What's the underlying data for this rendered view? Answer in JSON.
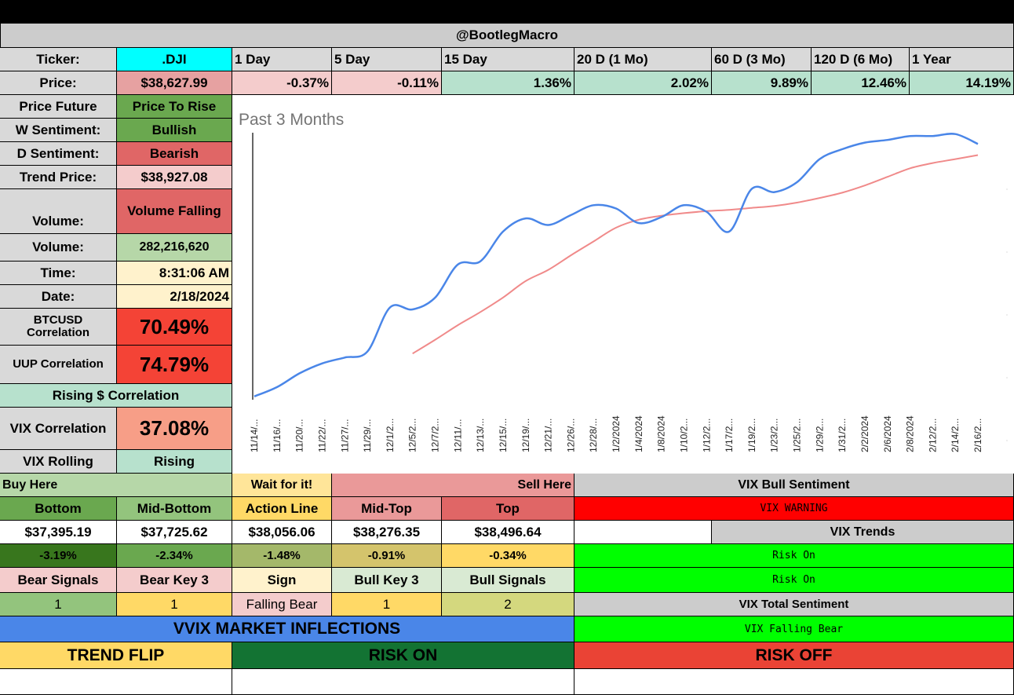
{
  "header": {
    "title": "@BootlegMacro"
  },
  "ticker": {
    "label": "Ticker:",
    "value": ".DJI"
  },
  "periods": [
    "1 Day",
    "5 Day",
    "15 Day",
    "20 D (1 Mo)",
    "60 D (3 Mo)",
    "120 D (6 Mo)",
    "1 Year"
  ],
  "price": {
    "label": "Price:",
    "value": "$38,627.99",
    "changes": [
      "-0.37%",
      "-0.11%",
      "1.36%",
      "2.02%",
      "9.89%",
      "12.46%",
      "14.19%"
    ]
  },
  "stats": {
    "price_future": {
      "label": "Price Future",
      "value": "Price To Rise"
    },
    "w_sentiment": {
      "label": "W Sentiment:",
      "value": "Bullish"
    },
    "d_sentiment": {
      "label": "D Sentiment:",
      "value": "Bearish"
    },
    "trend_price": {
      "label": "Trend Price:",
      "value": "$38,927.08"
    },
    "volume_trend": {
      "label": "Volume:",
      "value": "Volume Falling"
    },
    "volume": {
      "label": "Volume:",
      "value": "282,216,620"
    },
    "time": {
      "label": "Time:",
      "value": "8:31:06 AM"
    },
    "date": {
      "label": "Date:",
      "value": "2/18/2024"
    },
    "btcusd": {
      "label": "BTCUSD Correlation",
      "value": "70.49%"
    },
    "uup": {
      "label": "UUP Correlation",
      "value": "74.79%"
    },
    "rising": {
      "label": "Rising $ Correlation"
    },
    "vix_corr": {
      "label": "VIX Correlation",
      "value": "37.08%"
    },
    "vix_rolling": {
      "label": "VIX Rolling",
      "value": "Rising"
    }
  },
  "levels": {
    "buy_here": "Buy Here",
    "wait": "Wait for it!",
    "sell_here": "Sell Here",
    "headers": [
      "Bottom",
      "Mid-Bottom",
      "Action Line",
      "Mid-Top",
      "Top"
    ],
    "prices": [
      "$37,395.19",
      "$37,725.62",
      "$38,056.06",
      "$38,276.35",
      "$38,496.64"
    ],
    "pcts": [
      "-3.19%",
      "-2.34%",
      "-1.48%",
      "-0.91%",
      "-0.34%"
    ],
    "signal_headers": [
      "Bear Signals",
      "Bear Key 3",
      "Sign",
      "Bull Key 3",
      "Bull Signals"
    ],
    "signal_values": [
      "1",
      "1",
      "Falling Bear",
      "1",
      "2"
    ]
  },
  "vix": {
    "bull_sentiment": "VIX Bull Sentiment",
    "warning": "VIX WARNING",
    "trends": "VIX Trends",
    "risk_on_1": "Risk On",
    "risk_on_2": "Risk On",
    "total_sentiment": "VIX Total Sentiment",
    "falling_bear": "VIX Falling Bear"
  },
  "vvix": {
    "title": "VVIX MARKET INFLECTIONS",
    "trend_flip": "TREND FLIP",
    "risk_on": "RISK ON",
    "risk_off": "RISK OFF"
  },
  "colors": {
    "price_line": "#4a86e8",
    "trend_line": "#f08a8a"
  },
  "chart_data": {
    "type": "line",
    "title": "Past 3 Months",
    "x": [
      "11/14/...",
      "11/16/...",
      "11/20/...",
      "11/22/...",
      "11/27/...",
      "11/29/...",
      "12/1/2...",
      "12/5/2...",
      "12/7/2...",
      "12/11/...",
      "12/13/...",
      "12/15/...",
      "12/19/...",
      "12/21/...",
      "12/26/...",
      "12/28/...",
      "1/2/2024",
      "1/4/2024",
      "1/8/2024",
      "1/10/2...",
      "1/12/2...",
      "1/17/2...",
      "1/19/2...",
      "1/23/2...",
      "1/25/2...",
      "1/29/2...",
      "1/31/2...",
      "2/2/2024",
      "2/6/2024",
      "2/8/2024",
      "2/12/2...",
      "2/14/2...",
      "2/16/2..."
    ],
    "series": [
      {
        "values": [
          34800,
          34940,
          35150,
          35300,
          35390,
          35480,
          36150,
          36120,
          36300,
          36800,
          36850,
          37300,
          37500,
          37400,
          37550,
          37700,
          37650,
          37430,
          37520,
          37700,
          37600,
          37300,
          37950,
          37900,
          38050,
          38400,
          38550,
          38650,
          38690,
          38750,
          38750,
          38780,
          38630
        ]
      },
      {
        "values": [
          null,
          null,
          null,
          null,
          null,
          null,
          null,
          35450,
          35660,
          35880,
          36080,
          36300,
          36550,
          36720,
          36940,
          37150,
          37360,
          37480,
          37540,
          37580,
          37610,
          37630,
          37660,
          37690,
          37740,
          37810,
          37890,
          38000,
          38130,
          38260,
          38340,
          38400,
          38460
        ]
      }
    ]
  }
}
